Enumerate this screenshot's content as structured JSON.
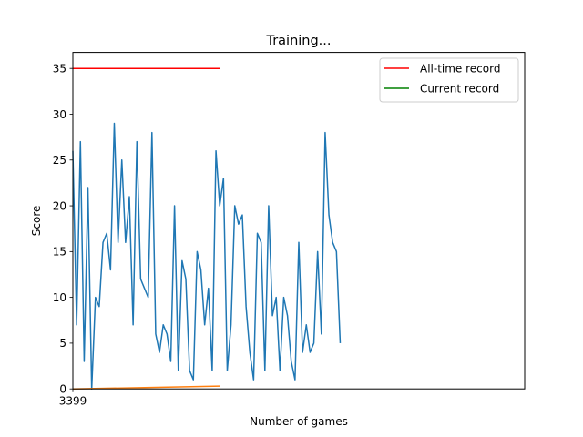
{
  "chart_data": {
    "type": "line",
    "title": "Training...",
    "xlabel": "Number of games",
    "ylabel": "Score",
    "xlim": [
      3399,
      3519
    ],
    "ylim": [
      0,
      36.75
    ],
    "x_ticks": [
      3399
    ],
    "x_tick_labels": [
      "3399"
    ],
    "y_ticks": [
      0,
      5,
      10,
      15,
      20,
      25,
      30,
      35
    ],
    "y_tick_labels": [
      "0",
      "5",
      "10",
      "15",
      "20",
      "25",
      "30",
      "35"
    ],
    "grid": false,
    "legend_position": "top-right",
    "legend": [
      {
        "label": "All-time record",
        "color": "#ff0000"
      },
      {
        "label": "Current record",
        "color": "#008000"
      }
    ],
    "record_lines": [
      {
        "name": "All-time record",
        "color": "#ff0000",
        "x_start": 3399,
        "x_end": 3438,
        "value": 35
      }
    ],
    "series": [
      {
        "color": "#1f77b4",
        "x_start": 3399,
        "values": [
          26,
          7,
          27,
          3,
          22,
          0,
          10,
          9,
          16,
          17,
          13,
          29,
          16,
          25,
          16,
          21,
          7,
          27,
          12,
          11,
          10,
          28,
          6,
          4,
          7,
          6,
          3,
          20,
          2,
          14,
          12,
          2,
          1,
          15,
          13,
          7,
          11,
          2,
          26,
          20,
          23,
          2,
          7,
          20,
          18,
          19,
          9,
          4,
          1,
          17,
          16,
          2,
          20,
          8,
          10,
          2,
          10,
          8,
          3,
          1,
          16,
          4,
          7,
          4,
          5,
          15,
          6,
          28,
          19,
          16,
          15,
          5
        ]
      },
      {
        "color": "#ff7f0e",
        "x_start": 3399,
        "x_end": 3438,
        "values_start": 0,
        "values_end": 0.3
      }
    ]
  }
}
